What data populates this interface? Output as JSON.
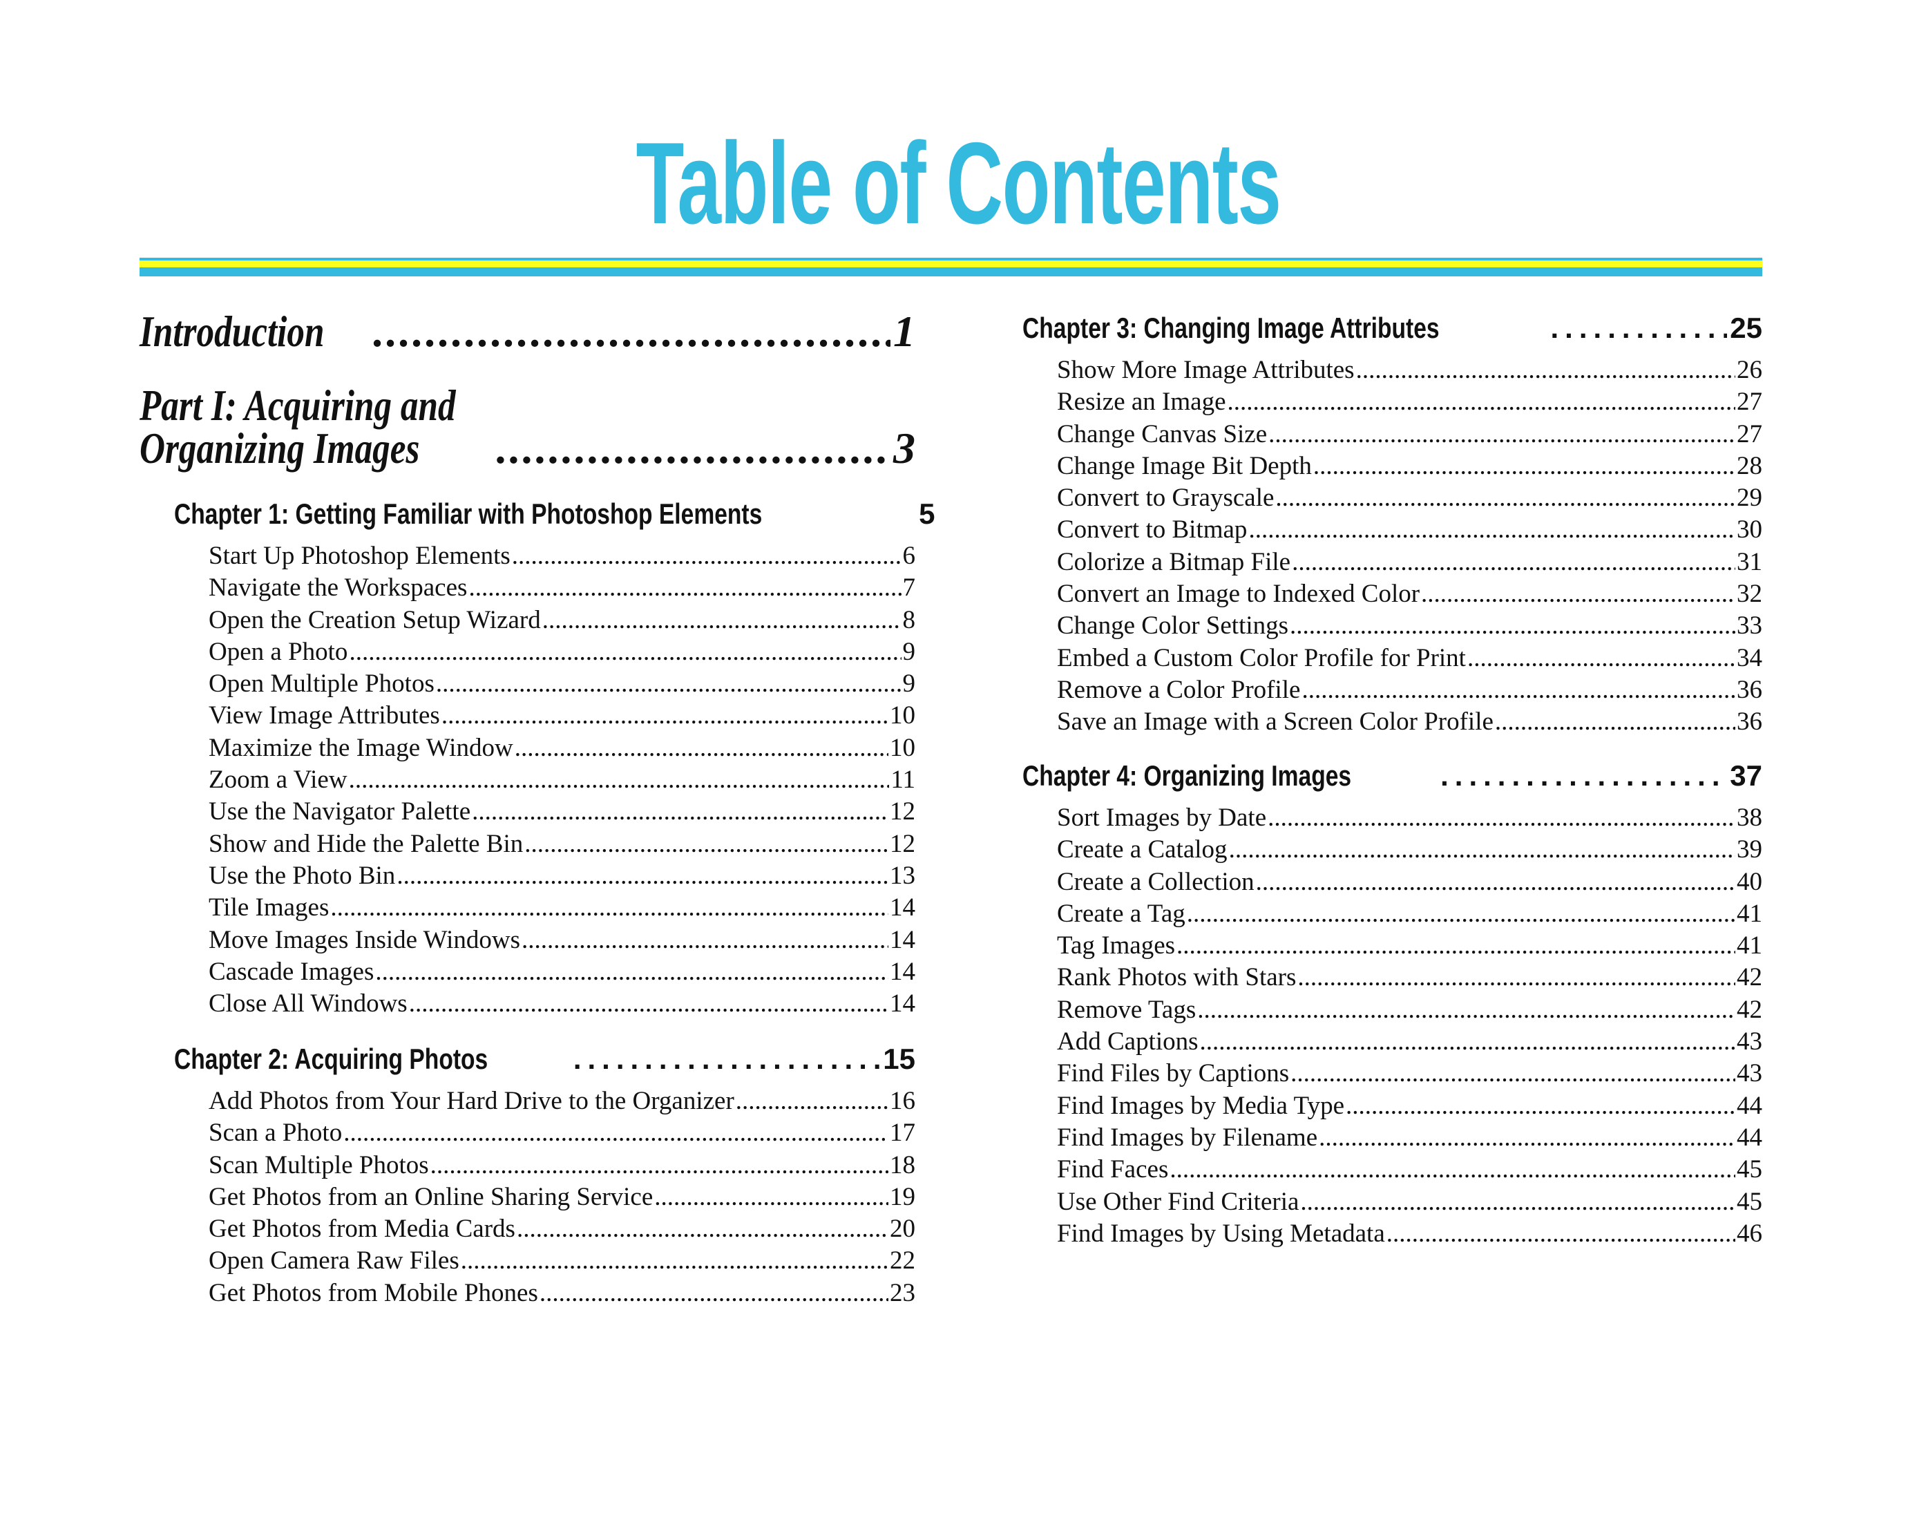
{
  "title": "Table of Contents",
  "colors": {
    "accent": "#33bade",
    "rule_yellow": "#ffff1e"
  },
  "left": {
    "introduction": {
      "label": "Introduction",
      "page": "1"
    },
    "part1": {
      "label_line1": "Part I: Acquiring and",
      "label_line2": "Organizing Images",
      "page": "3"
    },
    "chapters": [
      {
        "label": "Chapter 1: Getting Familiar with Photoshop Elements",
        "page": "5",
        "items": [
          {
            "label": "Start Up Photoshop Elements",
            "page": "6"
          },
          {
            "label": "Navigate the Workspaces",
            "page": "7"
          },
          {
            "label": "Open the Creation Setup Wizard",
            "page": "8"
          },
          {
            "label": "Open a Photo",
            "page": "9"
          },
          {
            "label": "Open Multiple Photos",
            "page": "9"
          },
          {
            "label": "View Image Attributes",
            "page": "10"
          },
          {
            "label": "Maximize the Image Window",
            "page": "10"
          },
          {
            "label": "Zoom a View",
            "page": "11"
          },
          {
            "label": "Use the Navigator Palette",
            "page": "12"
          },
          {
            "label": "Show and Hide the Palette Bin",
            "page": "12"
          },
          {
            "label": "Use the Photo Bin",
            "page": "13"
          },
          {
            "label": "Tile Images",
            "page": "14"
          },
          {
            "label": "Move Images Inside Windows",
            "page": "14"
          },
          {
            "label": "Cascade Images",
            "page": "14"
          },
          {
            "label": "Close All Windows",
            "page": "14"
          }
        ]
      },
      {
        "label": "Chapter 2: Acquiring Photos",
        "page": "15",
        "items": [
          {
            "label": "Add Photos from Your Hard Drive to the Organizer",
            "page": "16"
          },
          {
            "label": "Scan a Photo",
            "page": "17"
          },
          {
            "label": "Scan Multiple Photos",
            "page": "18"
          },
          {
            "label": "Get Photos from an Online Sharing Service",
            "page": "19"
          },
          {
            "label": "Get Photos from Media Cards",
            "page": "20"
          },
          {
            "label": "Open Camera Raw Files",
            "page": "22"
          },
          {
            "label": "Get Photos from Mobile Phones",
            "page": "23"
          }
        ]
      }
    ]
  },
  "right": {
    "chapters": [
      {
        "label": "Chapter 3: Changing Image Attributes",
        "page": "25",
        "items": [
          {
            "label": "Show More Image Attributes",
            "page": "26"
          },
          {
            "label": "Resize an Image",
            "page": "27"
          },
          {
            "label": "Change Canvas Size",
            "page": "27"
          },
          {
            "label": "Change Image Bit Depth",
            "page": "28"
          },
          {
            "label": "Convert to Grayscale",
            "page": "29"
          },
          {
            "label": "Convert to Bitmap",
            "page": "30"
          },
          {
            "label": "Colorize a Bitmap File",
            "page": "31"
          },
          {
            "label": "Convert an Image to Indexed Color",
            "page": "32"
          },
          {
            "label": "Change Color Settings",
            "page": "33"
          },
          {
            "label": "Embed a Custom Color Profile for Print",
            "page": "34"
          },
          {
            "label": "Remove a Color Profile",
            "page": "36"
          },
          {
            "label": "Save an Image with a Screen Color Profile",
            "page": "36"
          }
        ]
      },
      {
        "label": "Chapter 4: Organizing Images",
        "page": "37",
        "items": [
          {
            "label": "Sort Images by Date",
            "page": "38"
          },
          {
            "label": "Create a Catalog",
            "page": "39"
          },
          {
            "label": "Create a Collection",
            "page": "40"
          },
          {
            "label": "Create a Tag",
            "page": "41"
          },
          {
            "label": "Tag Images",
            "page": "41"
          },
          {
            "label": "Rank Photos with Stars",
            "page": "42"
          },
          {
            "label": "Remove Tags",
            "page": "42"
          },
          {
            "label": "Add Captions",
            "page": "43"
          },
          {
            "label": "Find Files by Captions",
            "page": "43"
          },
          {
            "label": "Find Images by Media Type",
            "page": "44"
          },
          {
            "label": "Find Images by Filename",
            "page": "44"
          },
          {
            "label": "Find Faces",
            "page": "45"
          },
          {
            "label": "Use Other Find Criteria",
            "page": "45"
          },
          {
            "label": "Find Images by Using Metadata",
            "page": "46"
          }
        ]
      }
    ]
  }
}
